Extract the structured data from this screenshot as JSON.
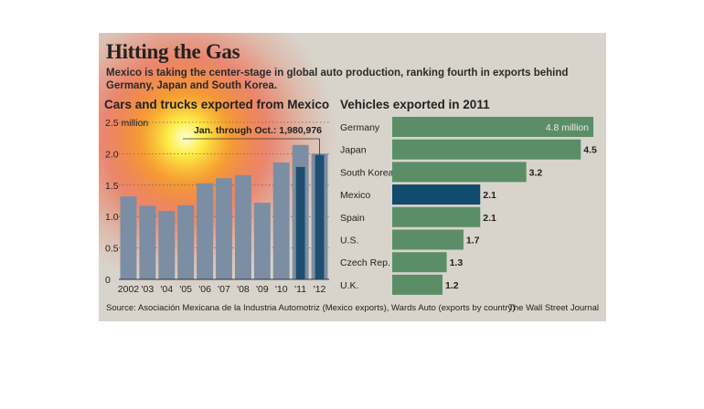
{
  "title": "Hitting the Gas",
  "subtitle": "Mexico is taking the center-stage in global auto production, ranking fourth in exports behind Germany, Japan and South Korea.",
  "source": "Source:  Asociación Mexicana de la Industria Automotriz (Mexico exports), Wards Auto (exports by country)",
  "credit": "The Wall Street Journal",
  "colors": {
    "background": "#d8d4cb",
    "bar": "#7b8ea3",
    "highlight": "#1e4e70",
    "hbar": "#5b8e67",
    "hbar_highlight": "#114b6e",
    "glow": "#ff3b00"
  },
  "chart_data": [
    {
      "type": "bar",
      "title": "Cars and trucks exported from Mexico",
      "categories": [
        "2002",
        "'03",
        "'04",
        "'05",
        "'06",
        "'07",
        "'08",
        "'09",
        "'10",
        "'11",
        "'12"
      ],
      "values": [
        1.32,
        1.17,
        1.09,
        1.18,
        1.53,
        1.61,
        1.66,
        1.22,
        1.86,
        2.14,
        2.0
      ],
      "highlight_values": {
        "'11": 1.79,
        "'12": 1.98
      },
      "annotation": "Jan. through Oct.: 1,980,976",
      "yticks": [
        "0",
        "0.5",
        "1.0",
        "1.5",
        "2.0",
        "2.5 million"
      ],
      "ytick_values": [
        0,
        0.5,
        1.0,
        1.5,
        2.0,
        2.5
      ],
      "ylim": [
        0,
        2.5
      ],
      "grid": "dotted"
    },
    {
      "type": "bar",
      "orientation": "horizontal",
      "title": "Vehicles exported in 2011",
      "categories": [
        "Germany",
        "Japan",
        "South Korea",
        "Mexico",
        "Spain",
        "U.S.",
        "Czech Rep.",
        "U.K."
      ],
      "values": [
        4.8,
        4.5,
        3.2,
        2.1,
        2.1,
        1.7,
        1.3,
        1.2
      ],
      "labels": [
        "4.8 million",
        "4.5",
        "3.2",
        "2.1",
        "2.1",
        "1.7",
        "1.3",
        "1.2"
      ],
      "highlight": "Mexico",
      "xlim": [
        0,
        4.8
      ]
    }
  ]
}
